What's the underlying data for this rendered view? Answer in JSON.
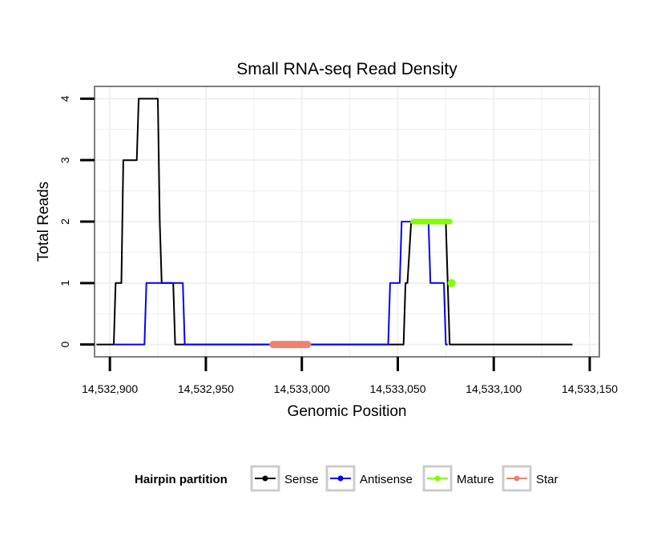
{
  "chart_data": {
    "type": "line",
    "title": "Small RNA-seq Read Density",
    "xlabel": "Genomic Position",
    "ylabel": "Total Reads",
    "xlim": [
      14532892,
      14533155
    ],
    "ylim": [
      -0.2,
      4.2
    ],
    "xticks": [
      14532900,
      14532950,
      14533000,
      14533050,
      14533100,
      14533150
    ],
    "xtick_labels": [
      "14,532,900",
      "14,532,950",
      "14,533,000",
      "14,533,050",
      "14,533,100",
      "14,533,150"
    ],
    "yticks": [
      0,
      1,
      2,
      3,
      4
    ],
    "ytick_labels": [
      "0",
      "1",
      "2",
      "3",
      "4"
    ],
    "grid": true,
    "legend": {
      "title": "Hairpin partition",
      "position": "bottom",
      "entries": [
        {
          "name": "Sense",
          "color": "#000000"
        },
        {
          "name": "Antisense",
          "color": "#0000ff"
        },
        {
          "name": "Mature",
          "color": "#7fff00"
        },
        {
          "name": "Star",
          "color": "#f08070"
        }
      ]
    },
    "series": [
      {
        "name": "Sense",
        "color": "#000000",
        "width": 2,
        "points": [
          [
            14532893,
            0
          ],
          [
            14532902,
            0
          ],
          [
            14532903,
            1
          ],
          [
            14532906,
            1
          ],
          [
            14532907,
            3
          ],
          [
            14532914,
            3
          ],
          [
            14532915,
            4
          ],
          [
            14532925,
            4
          ],
          [
            14532926,
            2
          ],
          [
            14532927,
            1
          ],
          [
            14532933,
            1
          ],
          [
            14532934,
            0
          ],
          [
            14533053,
            0
          ],
          [
            14533054,
            1
          ],
          [
            14533055,
            1
          ],
          [
            14533057,
            2
          ],
          [
            14533075,
            2
          ],
          [
            14533077,
            0
          ],
          [
            14533141,
            0
          ]
        ]
      },
      {
        "name": "Antisense",
        "color": "#0000ff",
        "width": 2,
        "points": [
          [
            14532902,
            0
          ],
          [
            14532918,
            0
          ],
          [
            14532919,
            1
          ],
          [
            14532938,
            1
          ],
          [
            14532939,
            0
          ],
          [
            14533045,
            0
          ],
          [
            14533046,
            1
          ],
          [
            14533051,
            1
          ],
          [
            14533052,
            2
          ],
          [
            14533066,
            2
          ],
          [
            14533067,
            1
          ],
          [
            14533074,
            1
          ],
          [
            14533075,
            0
          ],
          [
            14533076,
            0
          ]
        ]
      },
      {
        "name": "Mature",
        "color": "#7fff00",
        "width": 7,
        "points": [
          [
            14533058,
            2
          ],
          [
            14533077,
            2
          ]
        ],
        "marker_points": [
          [
            14533078,
            1
          ]
        ]
      },
      {
        "name": "Star",
        "color": "#f08070",
        "width": 9,
        "points": [
          [
            14532985,
            0
          ],
          [
            14533003,
            0
          ]
        ]
      }
    ]
  }
}
